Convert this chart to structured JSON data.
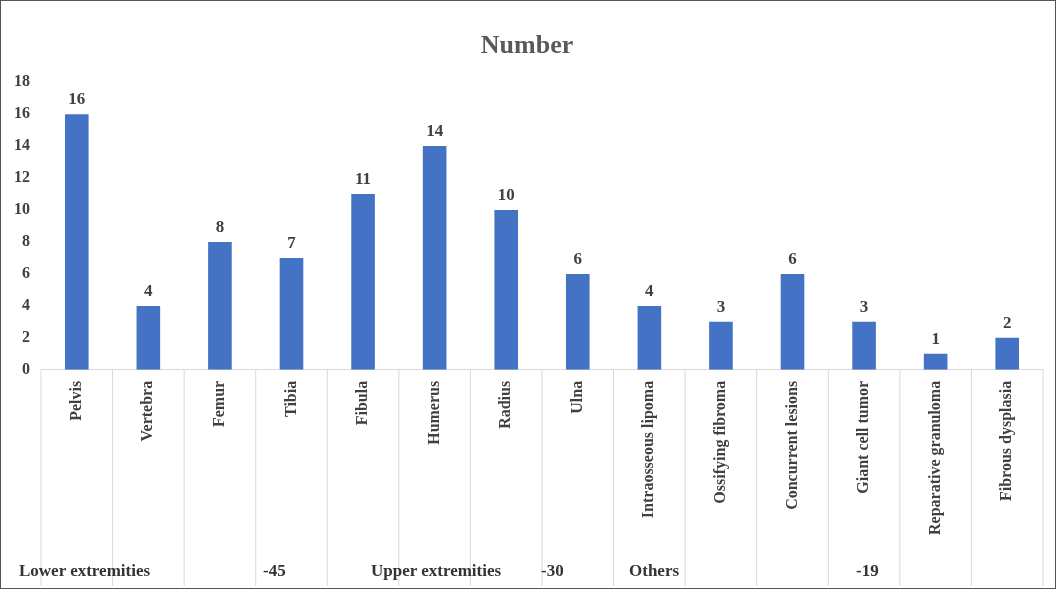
{
  "chart_data": {
    "type": "bar",
    "title": "Number",
    "categories": [
      "Pelvis",
      "Vertebra",
      "Femur",
      "Tibia",
      "Fibula",
      "Humerus",
      "Radius",
      "Ulna",
      "Intraosseous lipoma",
      "Ossifying fibroma",
      "Concurrent lesions",
      "Giant cell tumor",
      "Reparative granuloma",
      "Fibrous dysplasia"
    ],
    "values": [
      16,
      4,
      8,
      7,
      11,
      14,
      10,
      6,
      4,
      3,
      6,
      3,
      1,
      2
    ],
    "color": "#4472c4",
    "ylim": [
      0,
      18
    ],
    "yticks": [
      0,
      2,
      4,
      6,
      8,
      10,
      12,
      14,
      16,
      18
    ],
    "data_labels": true,
    "annotations": [
      "Lower extremities",
      "-45",
      "Upper extremities",
      "-30",
      "Others",
      "-19"
    ]
  }
}
